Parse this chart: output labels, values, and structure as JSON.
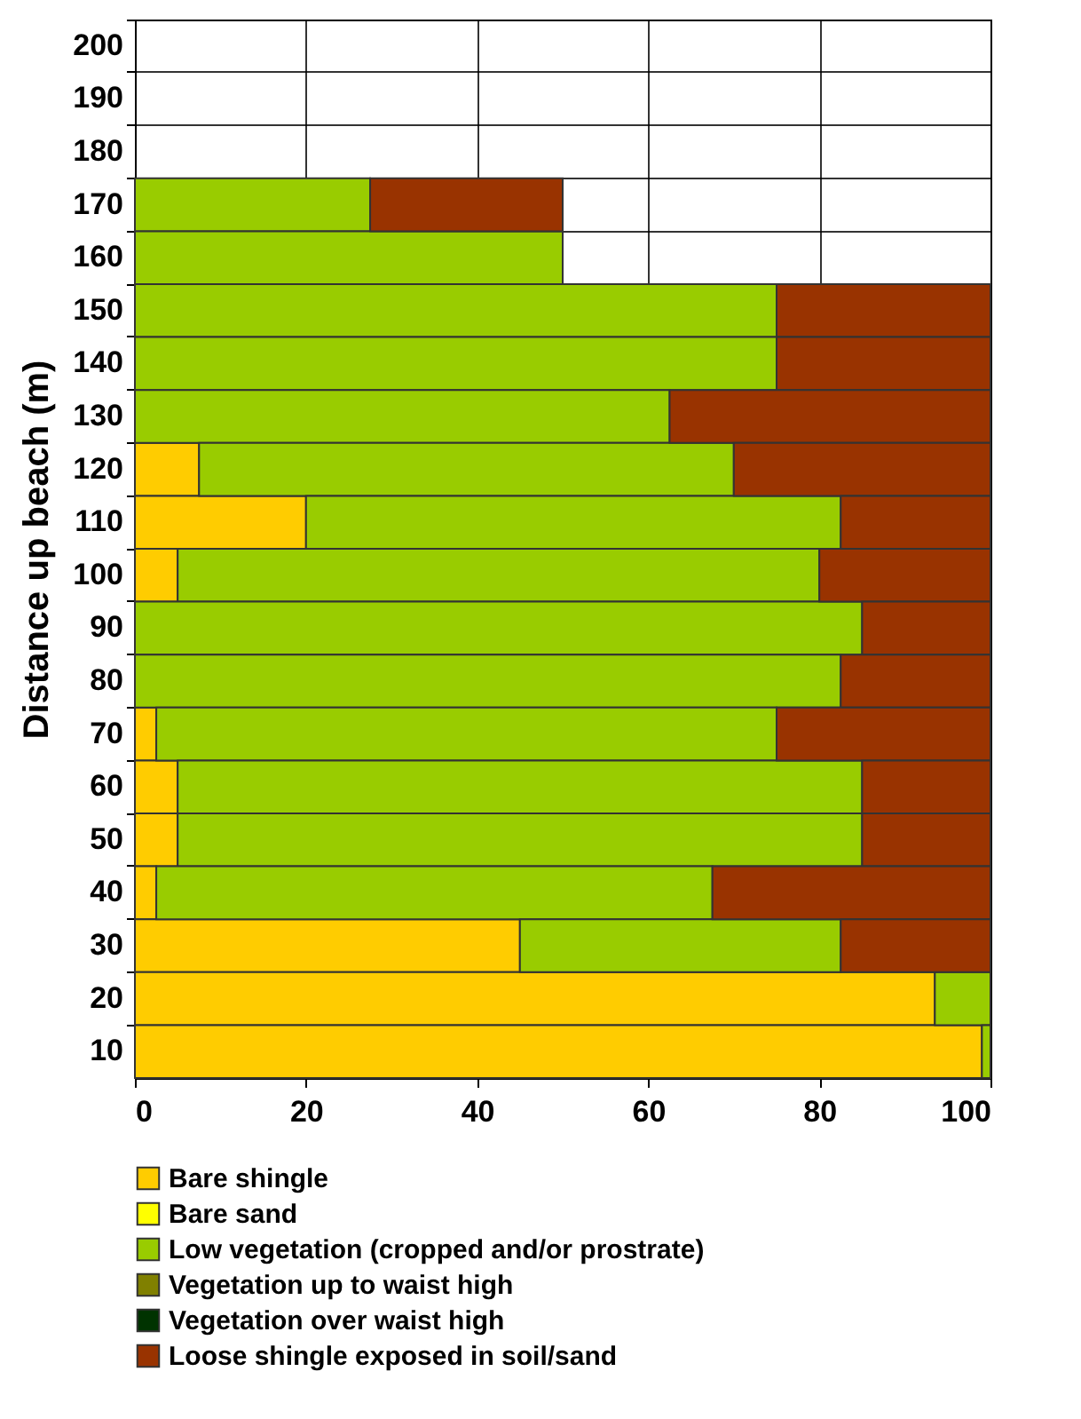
{
  "chart_data": {
    "type": "bar",
    "orientation": "horizontal",
    "stacked": true,
    "ylabel": "Distance up beach (m)",
    "categories": [
      "200",
      "190",
      "180",
      "170",
      "160",
      "150",
      "140",
      "130",
      "120",
      "110",
      "100",
      "90",
      "80",
      "70",
      "60",
      "50",
      "40",
      "30",
      "20",
      "10"
    ],
    "series": [
      {
        "name": "Bare shingle",
        "color": "#ffcc00",
        "values": [
          null,
          null,
          null,
          0,
          0,
          0,
          0,
          0,
          7.5,
          20,
          5,
          0,
          0,
          2.5,
          5,
          5,
          2.5,
          45,
          93.5,
          99
        ]
      },
      {
        "name": "Bare sand",
        "color": "#ffff00",
        "values": [
          null,
          null,
          null,
          0,
          0,
          0,
          0,
          0,
          0,
          0,
          0,
          0,
          0,
          0,
          0,
          0,
          0,
          0,
          0,
          0
        ]
      },
      {
        "name": "Low vegetation (cropped and/or prostrate)",
        "color": "#99cc00",
        "values": [
          null,
          null,
          null,
          27.5,
          50,
          75,
          75,
          62.5,
          62.5,
          62.5,
          75,
          85,
          82.5,
          72.5,
          80,
          80,
          65,
          37.5,
          6.5,
          1
        ]
      },
      {
        "name": "Vegetation up to waist high",
        "color": "#808000",
        "values": [
          null,
          null,
          null,
          0,
          0,
          0,
          0,
          0,
          0,
          0,
          0,
          0,
          0,
          0,
          0,
          0,
          0,
          0,
          0,
          0
        ]
      },
      {
        "name": "Vegetation over waist high",
        "color": "#003300",
        "values": [
          null,
          null,
          null,
          0,
          0,
          0,
          0,
          0,
          0,
          0,
          0,
          0,
          0,
          0,
          0,
          0,
          0,
          0,
          0,
          0
        ]
      },
      {
        "name": "Loose shingle exposed in soil/sand",
        "color": "#993300",
        "values": [
          null,
          null,
          null,
          22.5,
          0,
          25,
          25,
          37.5,
          30,
          17.5,
          20,
          15,
          17.5,
          25,
          15,
          15,
          32.5,
          17.5,
          0,
          0
        ]
      }
    ],
    "xlim": [
      0,
      100
    ],
    "xticks": [
      0,
      20,
      40,
      60,
      80,
      100
    ],
    "grid": true,
    "legend": "bottom"
  }
}
